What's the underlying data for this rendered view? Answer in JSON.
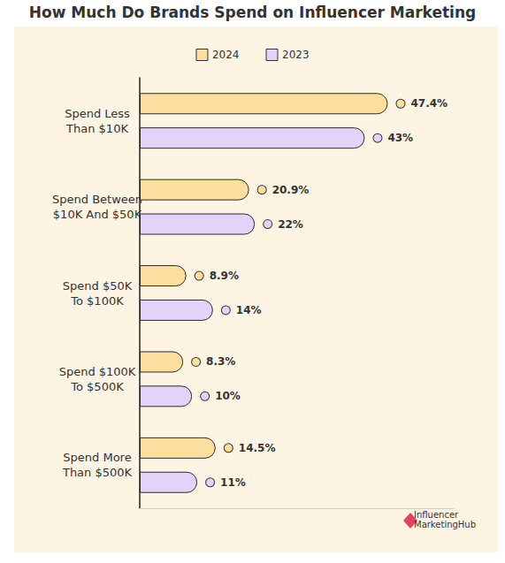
{
  "chart_data": {
    "type": "bar",
    "title": "How Much Do Brands Spend on Influencer Marketing",
    "orientation": "horizontal",
    "categories": [
      "Spend Less\nThan $10K",
      "Spend Between\n$10K And $50K",
      "Spend $50K\nTo $100K",
      "Spend $100K\nTo $500K",
      "Spend More\nThan $500K"
    ],
    "series": [
      {
        "name": "2024",
        "color": "#fbdf9f",
        "values": [
          47.4,
          20.9,
          8.9,
          8.3,
          14.5
        ],
        "value_labels": [
          "47.4%",
          "20.9%",
          "8.9%",
          "8.3%",
          "14.5%"
        ]
      },
      {
        "name": "2023",
        "color": "#e2d3f9",
        "values": [
          43,
          22,
          14,
          10,
          11
        ],
        "value_labels": [
          "43%",
          "22%",
          "14%",
          "10%",
          "11%"
        ]
      }
    ],
    "xlim": [
      0,
      60
    ],
    "data_labels": true,
    "tick_labels": "y",
    "grid": false,
    "legend": "top",
    "annotation": "Influencer\nMarketingHub"
  }
}
